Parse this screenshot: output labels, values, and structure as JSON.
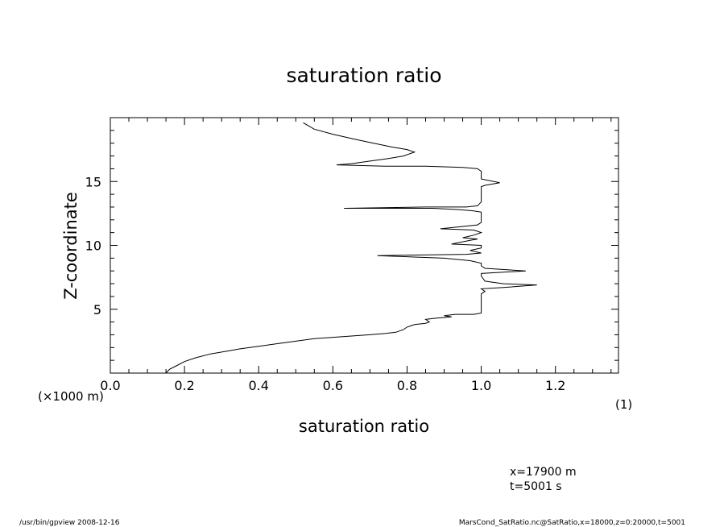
{
  "chart_data": {
    "type": "line",
    "title": "saturation ratio",
    "xlabel": "saturation ratio",
    "ylabel": "Z-coordinate",
    "xunit_label": "(1)",
    "yunit_label": "(×1000 m)",
    "xlim": [
      0.0,
      1.37
    ],
    "ylim": [
      0,
      20
    ],
    "x_ticks": [
      0.0,
      0.2,
      0.4,
      0.6,
      0.8,
      1.0,
      1.2
    ],
    "x_tick_labels": [
      "0.0",
      "0.2",
      "0.4",
      "0.6",
      "0.8",
      "1.0",
      "1.2"
    ],
    "y_ticks": [
      5,
      10,
      15
    ],
    "y_tick_labels": [
      "5",
      "10",
      "15"
    ],
    "grid": false,
    "series": [
      {
        "x": [
          0.15,
          0.16,
          0.18,
          0.2,
          0.23,
          0.27,
          0.31,
          0.35,
          0.4,
          0.45,
          0.5,
          0.55,
          0.6,
          0.65,
          0.7,
          0.74,
          0.77,
          0.79,
          0.8,
          0.82,
          0.85,
          0.86,
          0.85,
          0.88,
          0.92,
          0.9,
          0.93,
          0.97,
          0.98,
          1.0,
          1.0,
          1.01,
          1.0,
          1.06,
          1.15,
          1.06,
          1.01,
          1.0,
          1.0,
          1.12,
          1.01,
          1.0,
          1.0,
          0.97,
          0.9,
          0.72,
          0.96,
          1.0,
          0.97,
          1.0,
          1.0,
          0.92,
          0.97,
          0.99,
          0.95,
          0.98,
          1.0,
          0.98,
          0.89,
          0.99,
          1.0,
          1.0,
          0.98,
          0.94,
          0.87,
          0.63,
          0.85,
          0.96,
          0.99,
          1.0,
          1.0,
          1.0,
          1.01,
          1.05,
          1.0,
          1.0,
          0.99,
          0.95,
          0.85,
          0.74,
          0.61,
          0.65,
          0.7,
          0.75,
          0.79,
          0.81,
          0.82,
          0.8,
          0.76,
          0.71,
          0.66,
          0.6,
          0.55,
          0.52
        ],
        "y": [
          0.0,
          0.3,
          0.6,
          0.9,
          1.2,
          1.5,
          1.7,
          1.9,
          2.1,
          2.3,
          2.5,
          2.7,
          2.8,
          2.9,
          3.0,
          3.1,
          3.2,
          3.4,
          3.6,
          3.8,
          3.9,
          4.0,
          4.2,
          4.3,
          4.4,
          4.5,
          4.6,
          4.6,
          4.6,
          4.7,
          6.2,
          6.4,
          6.6,
          6.7,
          6.9,
          7.0,
          7.2,
          7.6,
          7.8,
          8.0,
          8.2,
          8.4,
          8.6,
          8.8,
          9.0,
          9.2,
          9.3,
          9.4,
          9.6,
          9.8,
          10.0,
          10.1,
          10.4,
          10.5,
          10.6,
          10.8,
          11.0,
          11.2,
          11.3,
          11.6,
          11.8,
          12.6,
          12.7,
          12.8,
          12.9,
          12.9,
          13.0,
          13.0,
          13.1,
          13.4,
          14.0,
          14.6,
          14.7,
          14.9,
          15.2,
          15.8,
          16.0,
          16.1,
          16.2,
          16.2,
          16.3,
          16.4,
          16.6,
          16.8,
          17.0,
          17.2,
          17.3,
          17.5,
          17.7,
          18.0,
          18.3,
          18.7,
          19.1,
          19.6
        ]
      }
    ]
  },
  "annotations": {
    "coord_x": "x=17900 m",
    "coord_t": "t=5001 s",
    "footer_left": "/usr/bin/gpview  2008-12-16",
    "footer_right": "MarsCond_SatRatio.nc@SatRatio,x=18000,z=0:20000,t=5001"
  },
  "colors": {
    "line": "#000000",
    "background": "#ffffff"
  }
}
